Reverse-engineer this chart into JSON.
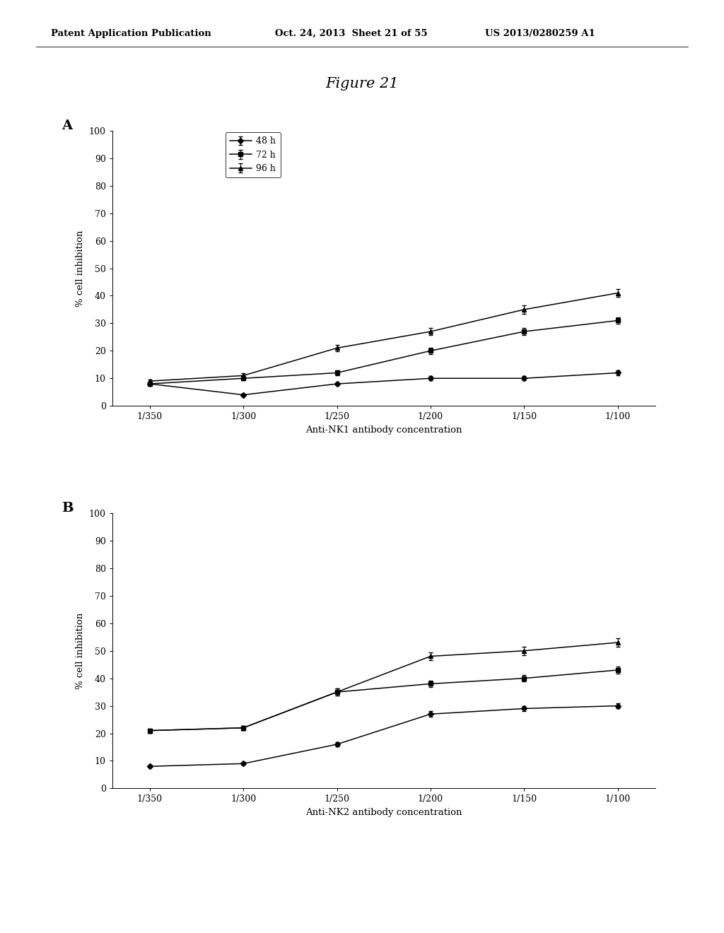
{
  "figure_title": "Figure 21",
  "header_left": "Patent Application Publication",
  "header_date": "Oct. 24, 2013  Sheet 21 of 55",
  "header_right": "US 2013/0280259 A1",
  "x_labels": [
    "1/350",
    "1/300",
    "1/250",
    "1/200",
    "1/150",
    "1/100"
  ],
  "x_values": [
    0,
    1,
    2,
    3,
    4,
    5
  ],
  "chartA": {
    "label": "A",
    "xlabel": "Anti-NK1 antibody concentration",
    "ylabel": "% cell inhibition",
    "ylim": [
      0,
      100
    ],
    "yticks": [
      0,
      10,
      20,
      30,
      40,
      50,
      60,
      70,
      80,
      90,
      100
    ],
    "series": {
      "48h": {
        "label": "48 h",
        "marker": "D",
        "y": [
          8.0,
          4.0,
          8.0,
          10.0,
          10.0,
          12.0
        ],
        "yerr": [
          0.5,
          0.5,
          0.5,
          0.8,
          0.8,
          0.8
        ]
      },
      "72h": {
        "label": "72 h",
        "marker": "s",
        "y": [
          8.0,
          10.0,
          12.0,
          20.0,
          27.0,
          31.0
        ],
        "yerr": [
          0.5,
          0.8,
          1.0,
          1.2,
          1.2,
          1.2
        ]
      },
      "96h": {
        "label": "96 h",
        "marker": "^",
        "y": [
          9.0,
          11.0,
          21.0,
          27.0,
          35.0,
          41.0
        ],
        "yerr": [
          0.5,
          0.8,
          1.2,
          1.2,
          1.5,
          1.5
        ]
      }
    }
  },
  "chartB": {
    "label": "B",
    "xlabel": "Anti-NK2 antibody concentration",
    "ylabel": "% cell inhibition",
    "ylim": [
      0,
      100
    ],
    "yticks": [
      0,
      10,
      20,
      30,
      40,
      50,
      60,
      70,
      80,
      90,
      100
    ],
    "series": {
      "48h": {
        "label": "48 h",
        "marker": "D",
        "y": [
          8.0,
          9.0,
          16.0,
          27.0,
          29.0,
          30.0
        ],
        "yerr": [
          0.5,
          0.5,
          0.8,
          1.0,
          1.0,
          1.0
        ]
      },
      "72h": {
        "label": "72 h",
        "marker": "s",
        "y": [
          21.0,
          22.0,
          35.0,
          38.0,
          40.0,
          43.0
        ],
        "yerr": [
          0.8,
          0.8,
          1.2,
          1.2,
          1.2,
          1.2
        ]
      },
      "96h": {
        "label": "96 h",
        "marker": "^",
        "y": [
          21.0,
          22.0,
          35.0,
          48.0,
          50.0,
          53.0
        ],
        "yerr": [
          0.8,
          0.8,
          1.2,
          1.5,
          1.5,
          1.5
        ]
      }
    }
  },
  "line_color": "#000000",
  "background_color": "#ffffff",
  "font_family": "DejaVu Serif"
}
